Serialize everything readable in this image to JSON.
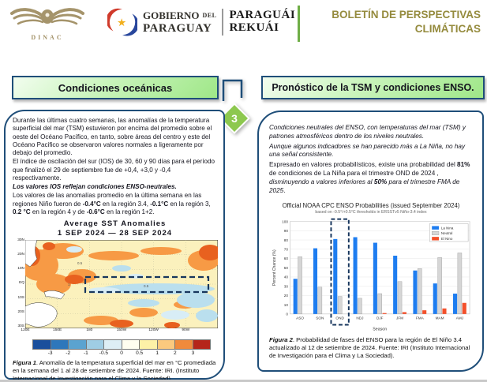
{
  "header": {
    "dinac_label": "DINAC",
    "gobierno_line1": "GOBIERNO",
    "gobierno_del": "DEL",
    "gobierno_line2": "PARAGUAY",
    "guarani_line1": "PARAGUÁI",
    "guarani_line2": "REKUÁI",
    "bulletin_line1": "BOLETÍN DE PERSPECTIVAS",
    "bulletin_line2": "CLIMÁTICAS"
  },
  "connector": {
    "number": "3"
  },
  "left_panel": {
    "title": "Condiciones oceánicas",
    "paragraphs": [
      {
        "parts": [
          {
            "t": "Durante las últimas cuatro semanas, las anomalías de la temperatura superficial del mar (TSM) estuvieron por encima del promedio sobre el oeste del Océano Pacífico, en tanto, sobre áreas del centro y este del Océano Pacifico se observaron valores normales a ligeramente por debajo del promedio."
          }
        ]
      },
      {
        "parts": [
          {
            "t": "El índice de oscilación del sur (IOS) de 30, 60 y 90 días para el período que finalizó el 29 de septiembre fue de +0,4, +3,0 y -0,4 respectivamente."
          }
        ]
      },
      {
        "parts": [
          {
            "t": "Los valores IOS reflejan condiciones ENSO-neutrales.",
            "b": true,
            "i": true
          }
        ]
      },
      {
        "parts": [
          {
            "t": "Los valores de las anomalías promedio en la última semana en las regiones Niño fueron de "
          },
          {
            "t": "-0.4°C",
            "b": true
          },
          {
            "t": " en la región 3.4, "
          },
          {
            "t": "-0.1°C",
            "b": true
          },
          {
            "t": " en la región 3, "
          },
          {
            "t": "0.2 °C",
            "b": true
          },
          {
            "t": " en la región 4 y de "
          },
          {
            "t": "-0.6°C",
            "b": true
          },
          {
            "t": " en la región 1+2."
          }
        ]
      }
    ],
    "caption_parts": [
      {
        "t": "Figura 1",
        "b": true,
        "i": true
      },
      {
        "t": ". Anomalía de la temperatura superficial del mar en °C promediada en la semana del 1 al 28 de setiembre de 2024. Fuente: IRI. (Instituto Internacional de Investigación para el Clima y la Sociedad)."
      }
    ]
  },
  "map_figure": {
    "title_line1": "Average SST Anomalies",
    "title_line2": "1 SEP 2024 — 28 SEP 2024",
    "lat_labels": [
      "30N",
      "20N",
      "10N",
      "EQ",
      "10S",
      "20S",
      "30S"
    ],
    "lon_labels": [
      "120E",
      "150E",
      "180",
      "150W",
      "120W",
      "90W"
    ],
    "contour_labels": [
      "0.5",
      "1",
      "0.5"
    ],
    "colorbar_ticks": [
      "-3",
      "-2",
      "-1",
      "-0.5",
      "0",
      "0.5",
      "1",
      "2",
      "3"
    ],
    "colorbar_colors": [
      "#1a4f9c",
      "#2e77bb",
      "#5ba3d0",
      "#9fcde4",
      "#ddeef5",
      "#fffef0",
      "#fdf1a7",
      "#fbc97e",
      "#f08a3c",
      "#b5251a"
    ]
  },
  "right_panel": {
    "title": "Pronóstico de la TSM y condiciones ENSO.",
    "paragraphs": [
      {
        "parts": [
          {
            "t": "Condiciones neutrales del ENSO, con temperaturas del mar (TSM) y patrones atmosféricos dentro de los niveles neutrales.",
            "i": true
          }
        ]
      },
      {
        "parts": [
          {
            "t": "Aunque algunos indicadores se han parecido más a La Niña, no hay una señal consistente.",
            "i": true
          }
        ]
      },
      {
        "parts": [
          {
            "t": "Expresado en valores probabilísticos, existe una probabilidad del "
          },
          {
            "t": "81%",
            "b": true
          },
          {
            "t": " de condiciones de La Niña para el trimestre OND de 2024 , "
          },
          {
            "t": "disminuyendo a valores inferiores al ",
            "i": true
          },
          {
            "t": "50%",
            "b": true,
            "i": true
          },
          {
            "t": " para el trimestre FMA de 2025",
            "i": true
          },
          {
            "t": "."
          }
        ]
      }
    ],
    "caption_parts": [
      {
        "t": "Figura 2",
        "b": true,
        "i": true
      },
      {
        "t": ". Probabilidad de fases del ENSO para la región de El Niño 3.4 actualizado al 12 de setiembre de 2024. Fuente: IRI (Instituto Internacional de Investigación para el Clima y La Sociedad)."
      }
    ]
  },
  "chart_data": {
    "type": "bar",
    "title": "Official NOAA CPC ENSO Probabilities (issued September 2024)",
    "subtitle": "based on -0.5°/+0.5°C thresholds in ERSSTv5 Niño-3.4 index",
    "xlabel": "Season",
    "ylabel": "Percent Chance (%)",
    "ylim": [
      0,
      100
    ],
    "ytick_step": 10,
    "grid": true,
    "legend_position": "top-right",
    "categories": [
      "ASO",
      "SON",
      "OND",
      "NDJ",
      "DJF",
      "JFM",
      "FMA",
      "MAM",
      "AMJ"
    ],
    "series": [
      {
        "name": "La Nina",
        "color": "#1e7df0",
        "values": [
          38,
          71,
          81,
          83,
          77,
          63,
          47,
          33,
          22
        ]
      },
      {
        "name": "Neutral",
        "color": "#d6d6d6",
        "values": [
          62,
          29,
          19,
          17,
          22,
          35,
          49,
          61,
          66
        ]
      },
      {
        "name": "El Nino",
        "color": "#f4502a",
        "values": [
          0,
          0,
          0,
          0,
          1,
          2,
          4,
          6,
          12
        ]
      }
    ],
    "highlight_category": "OND"
  },
  "colors": {
    "panel_border": "#1f4e79",
    "title_box_green": "#9fe788",
    "diamond_green": "#8dc84f",
    "header_olive": "#958b3e",
    "header_green_bar": "#6fae46",
    "nino_box_navy": "#17365d"
  }
}
